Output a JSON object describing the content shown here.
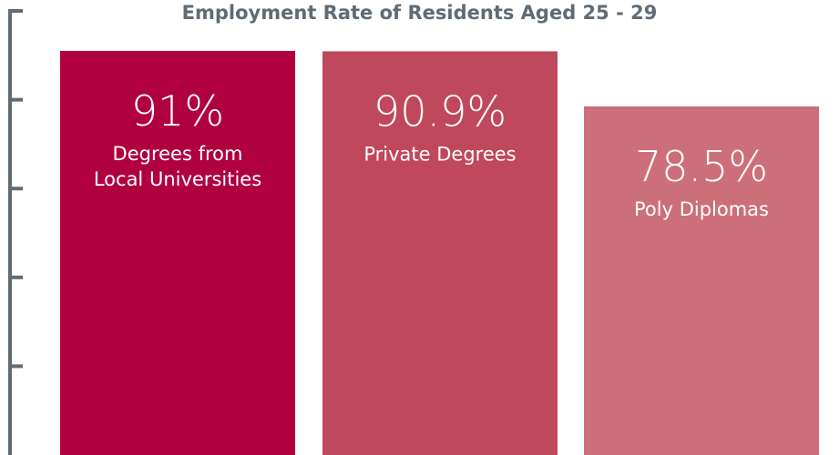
{
  "chart_data": {
    "type": "bar",
    "title": "Employment Rate of Residents Aged 25 - 29",
    "categories": [
      "Degrees from Local Universities",
      "Private Degrees",
      "Poly Diplomas"
    ],
    "category_lines": [
      [
        "Degrees from",
        "Local Universities"
      ],
      [
        "Private Degrees"
      ],
      [
        "Poly Diplomas"
      ]
    ],
    "values": [
      91,
      90.9,
      78.5
    ],
    "value_labels": [
      "91%",
      "90.9%",
      "78.5%"
    ],
    "ylim": [
      0,
      100
    ],
    "grid": false,
    "legend": "none",
    "bar_colors": [
      "#b0003f",
      "#c0485b",
      "#cd6f78"
    ],
    "axis_color": "#5f6b75"
  }
}
